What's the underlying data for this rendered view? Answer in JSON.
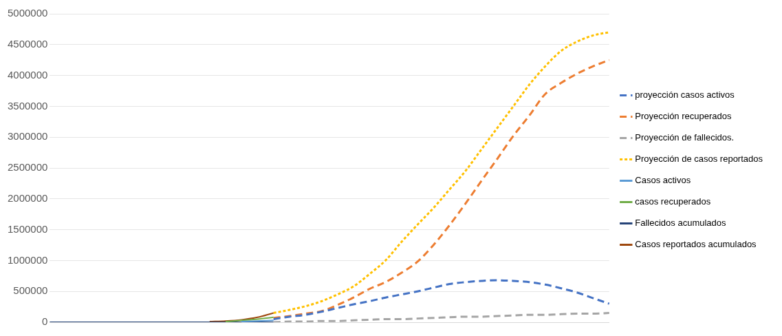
{
  "chart_data": {
    "type": "line",
    "categories": [
      null,
      null,
      null,
      null,
      null,
      null,
      null,
      null,
      null,
      null,
      null,
      null,
      null,
      null,
      null,
      null,
      null,
      null,
      null,
      null,
      null,
      null,
      null,
      null,
      null,
      null,
      null,
      null,
      null,
      null,
      null,
      null,
      null,
      null,
      null,
      null
    ],
    "ylim": [
      0,
      5000000
    ],
    "yticks": [
      0,
      500000,
      1000000,
      1500000,
      2000000,
      2500000,
      3000000,
      3500000,
      4000000,
      4500000,
      5000000
    ],
    "grid": "y",
    "legend": "right",
    "marker": "none",
    "tick_labels": "y",
    "series": [
      {
        "name": "proyección casos activos",
        "color": "#4472c4",
        "line_style": "dashed",
        "values": [
          null,
          null,
          null,
          null,
          null,
          null,
          null,
          null,
          null,
          null,
          null,
          null,
          null,
          null,
          50000,
          90000,
          120000,
          170000,
          230000,
          290000,
          340000,
          400000,
          450000,
          500000,
          560000,
          620000,
          650000,
          670000,
          680000,
          670000,
          650000,
          610000,
          550000,
          480000,
          390000,
          300000
        ]
      },
      {
        "name": "Proyección recuperados",
        "color": "#ed7d31",
        "line_style": "dashed",
        "values": [
          null,
          null,
          null,
          null,
          null,
          null,
          null,
          null,
          null,
          null,
          null,
          null,
          null,
          null,
          70000,
          100000,
          140000,
          180000,
          280000,
          400000,
          540000,
          650000,
          800000,
          980000,
          1250000,
          1570000,
          1920000,
          2290000,
          2650000,
          3020000,
          3350000,
          3700000,
          3880000,
          4030000,
          4150000,
          4250000
        ]
      },
      {
        "name": "Proyección de fallecidos.",
        "color": "#a5a5a5",
        "line_style": "dashed",
        "values": [
          null,
          null,
          null,
          null,
          null,
          null,
          null,
          null,
          null,
          null,
          null,
          null,
          null,
          null,
          0,
          10000,
          10000,
          20000,
          20000,
          30000,
          40000,
          50000,
          50000,
          60000,
          70000,
          80000,
          90000,
          90000,
          100000,
          110000,
          120000,
          120000,
          130000,
          140000,
          140000,
          150000
        ]
      },
      {
        "name": "Proyección de casos reportados",
        "color": "#ffc000",
        "line_style": "dotted",
        "values": [
          null,
          null,
          null,
          null,
          null,
          null,
          null,
          null,
          null,
          null,
          null,
          null,
          null,
          null,
          150000,
          200000,
          260000,
          340000,
          450000,
          580000,
          780000,
          1000000,
          1300000,
          1580000,
          1850000,
          2150000,
          2450000,
          2800000,
          3150000,
          3500000,
          3850000,
          4150000,
          4400000,
          4550000,
          4650000,
          4700000
        ]
      },
      {
        "name": "Casos activos",
        "color": "#5b9bd5",
        "line_style": "solid",
        "values": [
          null,
          null,
          null,
          null,
          null,
          null,
          null,
          null,
          null,
          null,
          null,
          null,
          10000,
          20000,
          30000,
          null,
          null,
          null,
          null,
          null,
          null,
          null,
          null,
          null,
          null,
          null,
          null,
          null,
          null,
          null,
          null,
          null,
          null,
          null,
          null,
          null
        ]
      },
      {
        "name": "casos recuperados",
        "color": "#70ad47",
        "line_style": "solid",
        "values": [
          null,
          null,
          null,
          null,
          null,
          null,
          null,
          null,
          null,
          null,
          null,
          10000,
          30000,
          50000,
          80000,
          null,
          null,
          null,
          null,
          null,
          null,
          null,
          null,
          null,
          null,
          null,
          null,
          null,
          null,
          null,
          null,
          null,
          null,
          null,
          null,
          null
        ]
      },
      {
        "name": "Fallecidos acumulados",
        "color": "#264478",
        "line_style": "solid",
        "values": [
          0,
          0,
          0,
          0,
          0,
          0,
          0,
          0,
          0,
          0,
          0,
          0,
          0,
          0,
          0,
          null,
          null,
          null,
          null,
          null,
          null,
          null,
          null,
          null,
          null,
          null,
          null,
          null,
          null,
          null,
          null,
          null,
          null,
          null,
          null,
          null
        ]
      },
      {
        "name": "Casos reportados acumulados",
        "color": "#9e480e",
        "line_style": "solid",
        "values": [
          null,
          null,
          null,
          null,
          null,
          null,
          null,
          null,
          null,
          null,
          10000,
          20000,
          40000,
          80000,
          150000,
          null,
          null,
          null,
          null,
          null,
          null,
          null,
          null,
          null,
          null,
          null,
          null,
          null,
          null,
          null,
          null,
          null,
          null,
          null,
          null,
          null
        ]
      }
    ]
  }
}
